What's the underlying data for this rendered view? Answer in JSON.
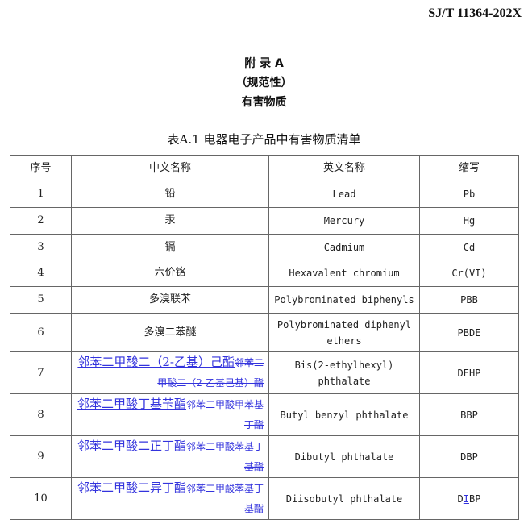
{
  "standard_id": "SJ/T 11364-202X",
  "appendix": {
    "title": "附 录 A",
    "nature": "（规范性）",
    "subject": "有害物质"
  },
  "table_caption": "表A.1  电器电子产品中有害物质清单",
  "headers": [
    "序号",
    "中文名称",
    "英文名称",
    "缩写"
  ],
  "rows": [
    {
      "no": "1",
      "cn": [
        {
          "t": "铅"
        }
      ],
      "en": "Lead",
      "abbr": [
        {
          "t": "Pb"
        }
      ]
    },
    {
      "no": "2",
      "cn": [
        {
          "t": "汞"
        }
      ],
      "en": "Mercury",
      "abbr": [
        {
          "t": "Hg"
        }
      ]
    },
    {
      "no": "3",
      "cn": [
        {
          "t": "镉"
        }
      ],
      "en": "Cadmium",
      "abbr": [
        {
          "t": "Cd"
        }
      ]
    },
    {
      "no": "4",
      "cn": [
        {
          "t": "六价铬"
        }
      ],
      "en": "Hexavalent chromium",
      "abbr": [
        {
          "t": "Cr(VI)"
        }
      ]
    },
    {
      "no": "5",
      "cn": [
        {
          "t": "多溴联苯"
        }
      ],
      "en": "Polybrominated biphenyls",
      "abbr": [
        {
          "t": "PBB"
        }
      ]
    },
    {
      "no": "6",
      "cn": [
        {
          "t": "多溴二苯醚"
        }
      ],
      "en": "Polybrominated diphenyl ethers",
      "abbr": [
        {
          "t": "PBDE"
        }
      ]
    },
    {
      "no": "7",
      "cn": [
        {
          "t": "邻苯二甲酸二（2-乙基）己酯",
          "m": "ins"
        },
        {
          "t": "邻苯二甲酸二（2-乙基己基）酯",
          "m": "del"
        }
      ],
      "en": "Bis(2-ethylhexyl) phthalate",
      "abbr": [
        {
          "t": "DEHP"
        }
      ]
    },
    {
      "no": "8",
      "cn": [
        {
          "t": "邻苯二甲酸丁基苄酯",
          "m": "ins"
        },
        {
          "t": "邻苯二甲酸甲苯基丁酯",
          "m": "del"
        }
      ],
      "en": "Butyl benzyl phthalate",
      "abbr": [
        {
          "t": "BBP"
        }
      ]
    },
    {
      "no": "9",
      "cn": [
        {
          "t": "邻苯二甲酸二正丁酯",
          "m": "ins"
        },
        {
          "t": "邻苯二甲酸苯基丁基酯",
          "m": "del"
        }
      ],
      "en": "Dibutyl phthalate",
      "abbr": [
        {
          "t": "DBP"
        }
      ]
    },
    {
      "no": "10",
      "cn": [
        {
          "t": "邻苯二甲酸二异丁酯",
          "m": "ins"
        },
        {
          "t": "邻苯二甲酸苯基丁基酯",
          "m": "del"
        }
      ],
      "en": "Diisobutyl phthalate",
      "abbr": [
        {
          "t": "D"
        },
        {
          "t": "I",
          "m": "ins-small"
        },
        {
          "t": "BP"
        }
      ]
    }
  ],
  "colors": {
    "revision_mark": "#3333dd"
  }
}
